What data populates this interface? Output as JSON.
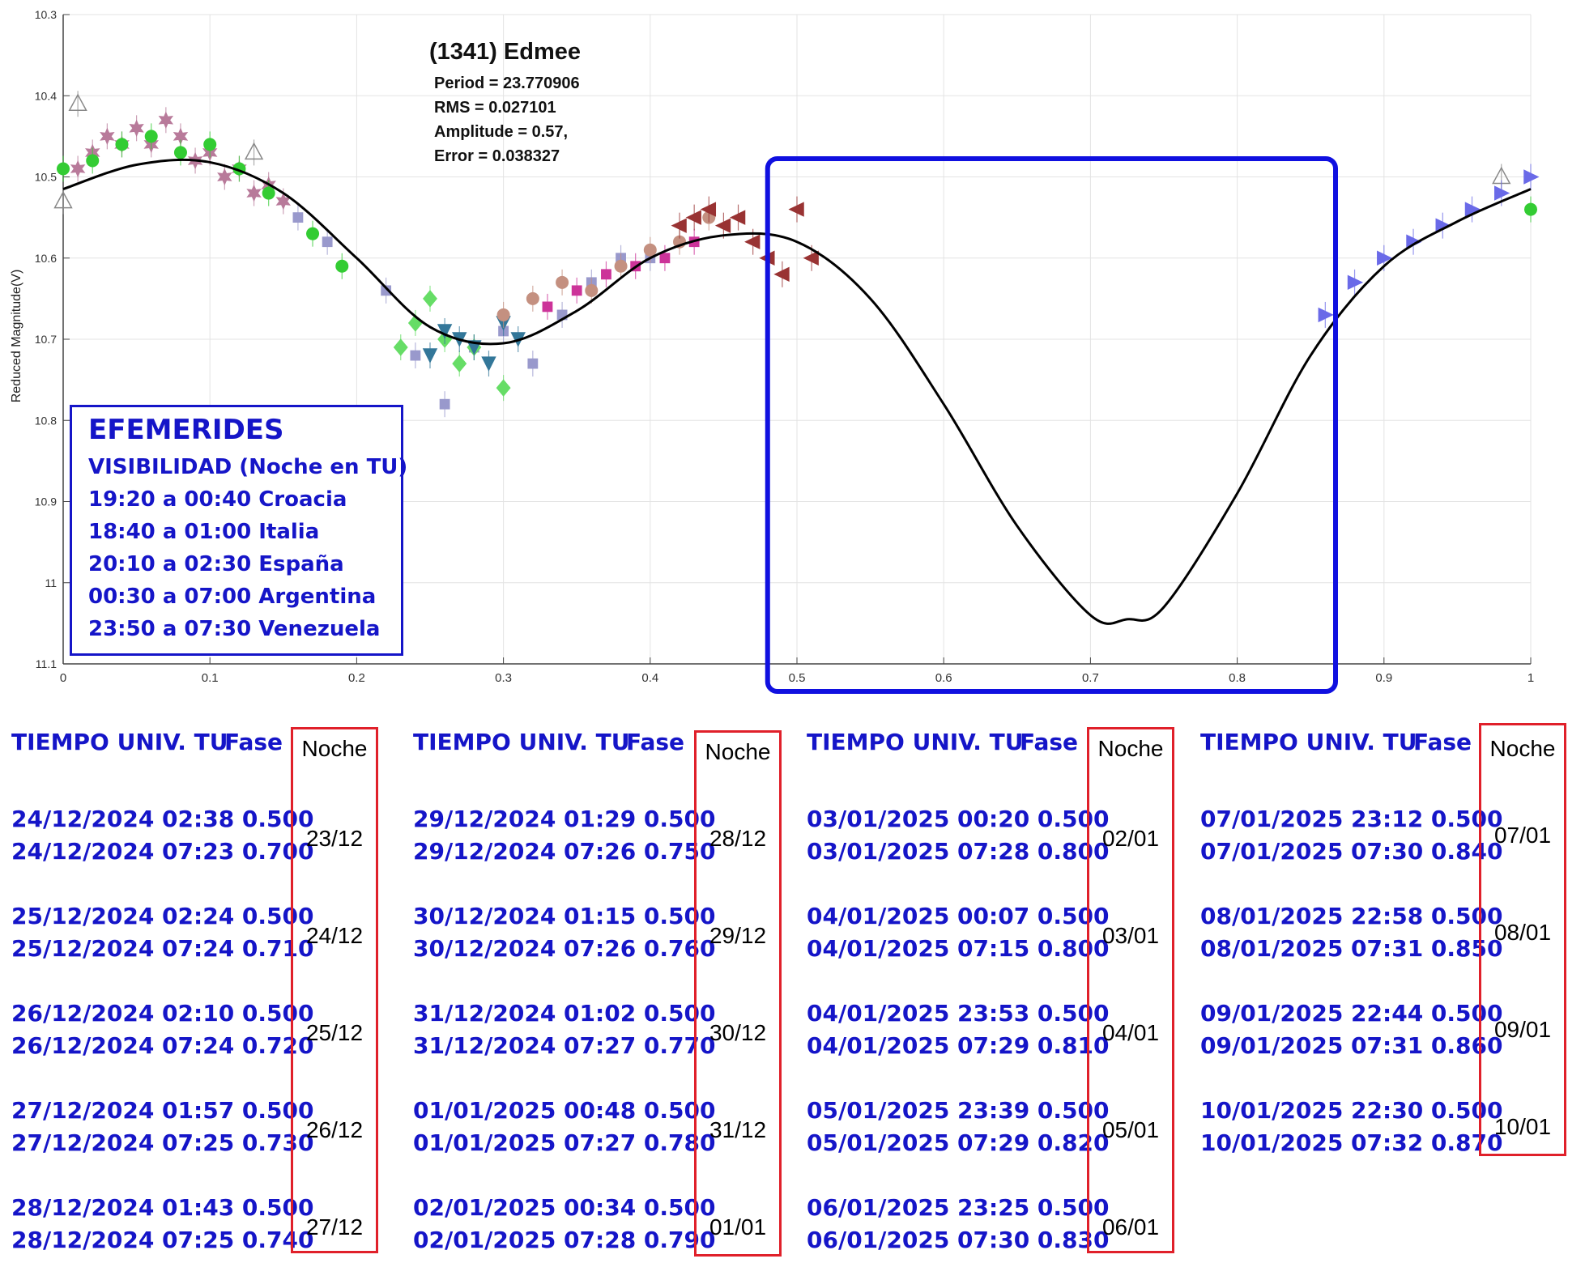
{
  "chart_data": {
    "type": "scatter",
    "title": "(1341) Edmee",
    "ylabel": "Reduced Magnitude(V)",
    "xlabel": "",
    "xlim": [
      0,
      1
    ],
    "ylim": [
      10.3,
      11.1
    ],
    "y_reversed": true,
    "grid": true,
    "x_ticks": [
      "0",
      "0.1",
      "0.2",
      "0.3",
      "0.4",
      "0.5",
      "0.6",
      "0.7",
      "0.8",
      "0.9",
      "1"
    ],
    "y_ticks": [
      "10.3",
      "10.4",
      "10.5",
      "10.6",
      "10.7",
      "10.8",
      "10.9",
      "11",
      "11.1"
    ],
    "annotations": {
      "period": "Period =  23.770906",
      "rms": "RMS = 0.027101",
      "amplitude": "Amplitude = 0.57,",
      "error": "Error =    0.038327"
    },
    "fit_curve": {
      "x": [
        0,
        0.05,
        0.1,
        0.15,
        0.2,
        0.25,
        0.3,
        0.35,
        0.4,
        0.45,
        0.5,
        0.55,
        0.6,
        0.65,
        0.7,
        0.725,
        0.75,
        0.8,
        0.85,
        0.9,
        0.95,
        1.0
      ],
      "y": [
        10.515,
        10.485,
        10.482,
        10.52,
        10.6,
        10.685,
        10.705,
        10.665,
        10.6,
        10.572,
        10.58,
        10.65,
        10.78,
        10.93,
        11.04,
        11.045,
        11.03,
        10.89,
        10.72,
        10.61,
        10.555,
        10.515
      ]
    },
    "series": [
      {
        "marker": "hexagram",
        "color": "#b87a9a",
        "x": [
          0.01,
          0.02,
          0.03,
          0.04,
          0.05,
          0.06,
          0.07,
          0.08,
          0.09,
          0.1,
          0.11,
          0.12,
          0.13,
          0.14,
          0.15
        ],
        "y": [
          10.49,
          10.47,
          10.45,
          10.46,
          10.44,
          10.46,
          10.43,
          10.45,
          10.48,
          10.47,
          10.5,
          10.49,
          10.52,
          10.51,
          10.53
        ]
      },
      {
        "marker": "circle",
        "color": "#33cc33",
        "x": [
          0.0,
          0.02,
          0.04,
          0.06,
          0.08,
          0.1,
          0.12,
          0.14,
          0.17,
          0.19,
          1.0
        ],
        "y": [
          10.49,
          10.48,
          10.46,
          10.45,
          10.47,
          10.46,
          10.49,
          10.52,
          10.57,
          10.61,
          10.54
        ]
      },
      {
        "marker": "triangle-up",
        "color": "#888888",
        "x": [
          0.0,
          0.01,
          0.13,
          0.98
        ],
        "y": [
          10.53,
          10.41,
          10.47,
          10.5
        ]
      },
      {
        "marker": "square",
        "color": "#9999cc",
        "x": [
          0.16,
          0.18,
          0.22,
          0.24,
          0.26,
          0.28,
          0.3,
          0.32,
          0.34,
          0.36,
          0.38,
          0.4
        ],
        "y": [
          10.55,
          10.58,
          10.64,
          10.72,
          10.78,
          10.71,
          10.69,
          10.73,
          10.67,
          10.63,
          10.6,
          10.6
        ]
      },
      {
        "marker": "diamond",
        "color": "#66dd66",
        "x": [
          0.23,
          0.24,
          0.25,
          0.26,
          0.27,
          0.28,
          0.3
        ],
        "y": [
          10.71,
          10.68,
          10.65,
          10.7,
          10.73,
          10.71,
          10.76
        ]
      },
      {
        "marker": "triangle-down",
        "color": "#337799",
        "x": [
          0.25,
          0.26,
          0.27,
          0.28,
          0.29,
          0.3,
          0.31
        ],
        "y": [
          10.72,
          10.69,
          10.7,
          10.71,
          10.73,
          10.68,
          10.7
        ]
      },
      {
        "marker": "circle",
        "color": "#c49080",
        "x": [
          0.3,
          0.32,
          0.34,
          0.36,
          0.38,
          0.4,
          0.42,
          0.44
        ],
        "y": [
          10.67,
          10.65,
          10.63,
          10.64,
          10.61,
          10.59,
          10.58,
          10.55
        ]
      },
      {
        "marker": "square",
        "color": "#cc3399",
        "x": [
          0.33,
          0.35,
          0.37,
          0.39,
          0.41,
          0.43
        ],
        "y": [
          10.66,
          10.64,
          10.62,
          10.61,
          10.6,
          10.58
        ]
      },
      {
        "marker": "triangle-left",
        "color": "#993333",
        "x": [
          0.42,
          0.43,
          0.44,
          0.45,
          0.46,
          0.47,
          0.48,
          0.49,
          0.5,
          0.51
        ],
        "y": [
          10.56,
          10.55,
          10.54,
          10.56,
          10.55,
          10.58,
          10.6,
          10.62,
          10.54,
          10.6
        ]
      },
      {
        "marker": "triangle-right",
        "color": "#6a6ae8",
        "x": [
          0.86,
          0.88,
          0.9,
          0.92,
          0.94,
          0.96,
          0.98,
          1.0
        ],
        "y": [
          10.67,
          10.63,
          10.6,
          10.58,
          10.56,
          10.54,
          10.52,
          10.5
        ]
      }
    ]
  },
  "highlight_box_color": "#1010e0",
  "efemerides": {
    "title": "EFEMERIDES",
    "lines": [
      "VISIBILIDAD (Noche en TU)",
      "19:20 a 00:40 Croacia",
      "18:40 a 01:00 Italia",
      "20:10 a 02:30 España",
      "00:30 a 07:00 Argentina",
      "23:50 a 07:30 Venezuela"
    ]
  },
  "table": {
    "header_time": "TIEMPO UNIV. TU",
    "header_phase": "Fase",
    "header_night": "Noche",
    "columns": [
      {
        "groups": [
          {
            "lines": [
              "24/12/2024  02:38 0.500",
              "24/12/2024  07:23 0.700"
            ],
            "night": "23/12"
          },
          {
            "lines": [
              "25/12/2024  02:24 0.500",
              "25/12/2024  07:24 0.710"
            ],
            "night": "24/12"
          },
          {
            "lines": [
              "26/12/2024  02:10 0.500",
              "26/12/2024  07:24 0.720"
            ],
            "night": "25/12"
          },
          {
            "lines": [
              "27/12/2024  01:57 0.500",
              "27/12/2024  07:25 0.730"
            ],
            "night": "26/12"
          },
          {
            "lines": [
              "28/12/2024  01:43 0.500",
              "28/12/2024  07:25 0.740"
            ],
            "night": "27/12"
          }
        ]
      },
      {
        "groups": [
          {
            "lines": [
              "29/12/2024  01:29 0.500",
              "29/12/2024  07:26 0.750"
            ],
            "night": "28/12"
          },
          {
            "lines": [
              "30/12/2024  01:15 0.500",
              "30/12/2024  07:26 0.760"
            ],
            "night": "29/12"
          },
          {
            "lines": [
              "31/12/2024  01:02 0.500",
              "31/12/2024  07:27 0.770"
            ],
            "night": "30/12"
          },
          {
            "lines": [
              "01/01/2025  00:48 0.500",
              "01/01/2025  07:27 0.780"
            ],
            "night": "31/12"
          },
          {
            "lines": [
              "02/01/2025  00:34 0.500",
              "02/01/2025  07:28 0.790"
            ],
            "night": "01/01"
          }
        ]
      },
      {
        "groups": [
          {
            "lines": [
              "03/01/2025  00:20 0.500",
              "03/01/2025  07:28 0.800"
            ],
            "night": "02/01"
          },
          {
            "lines": [
              "04/01/2025  00:07 0.500",
              "04/01/2025  07:15 0.800"
            ],
            "night": "03/01"
          },
          {
            "lines": [
              "04/01/2025  23:53 0.500",
              "04/01/2025  07:29 0.810"
            ],
            "night": "04/01"
          },
          {
            "lines": [
              "05/01/2025  23:39 0.500",
              "05/01/2025  07:29 0.820"
            ],
            "night": "05/01"
          },
          {
            "lines": [
              "06/01/2025  23:25 0.500",
              "06/01/2025  07:30 0.830"
            ],
            "night": "06/01"
          }
        ]
      },
      {
        "groups": [
          {
            "lines": [
              "07/01/2025  23:12 0.500",
              "07/01/2025  07:30 0.840"
            ],
            "night": "07/01"
          },
          {
            "lines": [
              "08/01/2025  22:58 0.500",
              "08/01/2025  07:31 0.850"
            ],
            "night": "08/01"
          },
          {
            "lines": [
              "09/01/2025  22:44 0.500",
              "09/01/2025  07:31 0.860"
            ],
            "night": "09/01"
          },
          {
            "lines": [
              "10/01/2025  22:30 0.500",
              "10/01/2025  07:32 0.870"
            ],
            "night": "10/01"
          }
        ]
      }
    ]
  }
}
